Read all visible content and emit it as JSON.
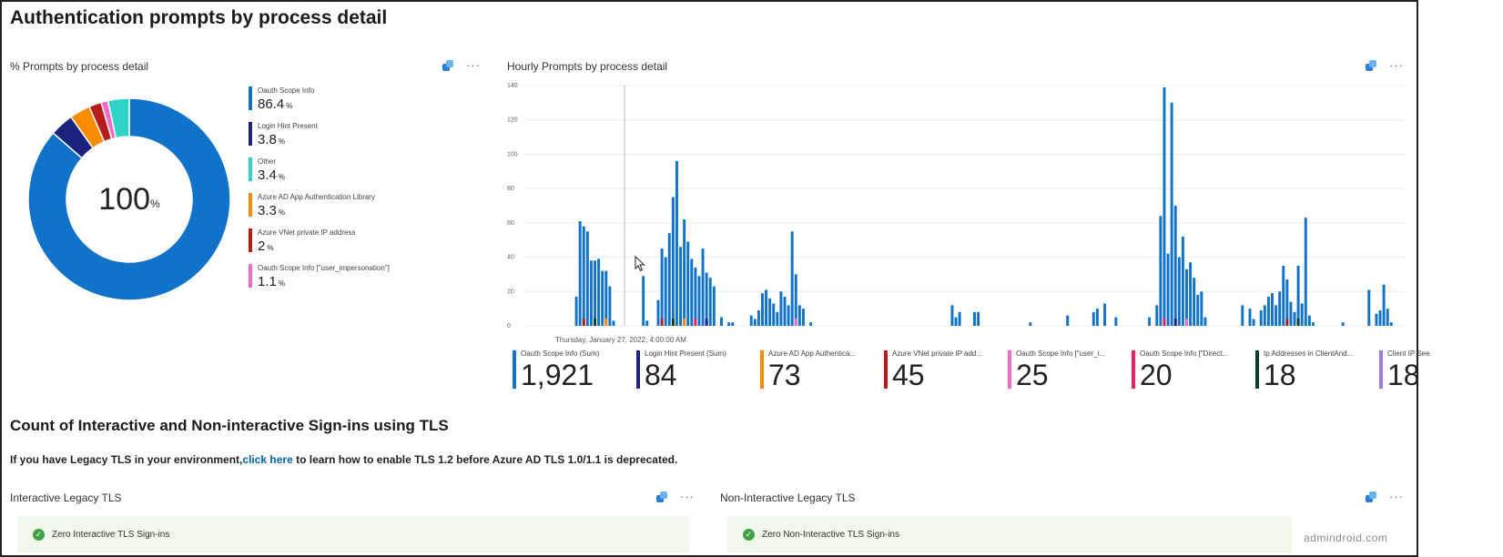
{
  "page": {
    "title": "Authentication prompts by process detail",
    "section2_title": "Count of Interactive and Non-interactive Sign-ins using TLS",
    "note_prefix": "If you have Legacy TLS in your environment,",
    "note_link": "click here",
    "note_suffix": " to learn how to enable TLS 1.2 before Azure AD TLS 1.0/1.1 is deprecated.",
    "watermark": "admindroid.com"
  },
  "icons": {
    "pin": "pin-to-dashboard-icon",
    "more": "more-options-icon",
    "ok": "checkmark-circle-icon",
    "cursor": "mouse-pointer-icon"
  },
  "more_glyph": "···",
  "donut_tile": {
    "title": "% Prompts by process detail",
    "center_value": "100",
    "center_unit": "%",
    "unit": "%",
    "legend": [
      {
        "label": "Oauth Scope Info",
        "value": "86.4",
        "color": "#1172c9"
      },
      {
        "label": "Login Hint Present",
        "value": "3.8",
        "color": "#1a237e"
      },
      {
        "label": "Other",
        "value": "3.4",
        "color": "#2fd3c7"
      },
      {
        "label": "Azure AD App Authentication Library",
        "value": "3.3",
        "color": "#fb8c00"
      },
      {
        "label": "Azure VNet private IP address",
        "value": "2",
        "color": "#b71c1c"
      },
      {
        "label": "Oauth Scope Info [\"user_impersonation\"]",
        "value": "1.1",
        "color": "#f06cc8"
      }
    ]
  },
  "chart_data": {
    "type": "bar",
    "title": "Hourly Prompts by process detail",
    "ylim": [
      0,
      140
    ],
    "yticks": [
      0,
      20,
      40,
      60,
      80,
      100,
      120,
      140
    ],
    "hover_label": "Thursday, January 27, 2022, 4:00:00 AM",
    "series_colors": [
      "#1172c9",
      "#1a237e",
      "#fb8c00",
      "#b71c1c",
      "#f06cc8",
      "#e91e63",
      "#0b3d2e",
      "#9c7de0"
    ],
    "values": [
      0,
      0,
      0,
      0,
      0,
      0,
      0,
      17,
      61,
      58,
      55,
      38,
      38,
      39,
      32,
      32,
      23,
      3,
      0,
      0,
      0,
      0,
      0,
      0,
      0,
      29,
      3,
      0,
      0,
      15,
      45,
      40,
      54,
      75,
      96,
      46,
      62,
      49,
      39,
      34,
      29,
      45,
      31,
      28,
      23,
      0,
      5,
      0,
      2,
      2,
      0,
      0,
      0,
      0,
      6,
      4,
      9,
      19,
      21,
      16,
      13,
      8,
      20,
      17,
      12,
      55,
      30,
      12,
      10,
      0,
      2,
      0,
      0,
      0,
      0,
      0,
      0,
      0,
      0,
      0,
      0,
      0,
      0,
      0,
      0,
      0,
      0,
      0,
      0,
      0,
      0,
      0,
      0,
      0,
      0,
      0,
      0,
      0,
      0,
      0,
      0,
      0,
      0,
      0,
      0,
      0,
      0,
      0,
      12,
      5,
      8,
      0,
      0,
      0,
      8,
      8,
      0,
      0,
      0,
      0,
      0,
      0,
      0,
      0,
      0,
      0,
      0,
      0,
      0,
      2,
      0,
      0,
      0,
      0,
      0,
      0,
      0,
      0,
      0,
      6,
      0,
      0,
      0,
      0,
      0,
      0,
      8,
      10,
      0,
      13,
      0,
      0,
      5,
      0,
      0,
      0,
      0,
      0,
      0,
      0,
      0,
      5,
      0,
      12,
      64,
      139,
      42,
      130,
      70,
      40,
      52,
      33,
      37,
      28,
      18,
      20,
      5,
      0,
      0,
      0,
      0,
      0,
      0,
      0,
      0,
      0,
      12,
      0,
      10,
      4,
      0,
      9,
      12,
      17,
      19,
      12,
      20,
      35,
      27,
      14,
      8,
      35,
      13,
      63,
      6,
      2,
      0,
      0,
      0,
      0,
      0,
      0,
      0,
      2,
      0,
      0,
      0,
      0,
      0,
      0,
      21,
      0,
      7,
      9,
      24,
      10,
      2,
      0
    ]
  },
  "kpis": [
    {
      "label": "Oauth Scope Info (Sum)",
      "value": "1,921",
      "color": "#1172c9"
    },
    {
      "label": "Login Hint Present (Sum)",
      "value": "84",
      "color": "#1a237e"
    },
    {
      "label": "Azure AD App Authentica...",
      "value": "73",
      "color": "#fb8c00"
    },
    {
      "label": "Azure VNet private IP add...",
      "value": "45",
      "color": "#b71c1c"
    },
    {
      "label": "Oauth Scope Info [\"user_i...",
      "value": "25",
      "color": "#f06cc8"
    },
    {
      "label": "Oauth Scope Info [\"Direct...",
      "value": "20",
      "color": "#e91e63"
    },
    {
      "label": "Ip Addresses in ClientAnd...",
      "value": "18",
      "color": "#0b3d2e"
    },
    {
      "label": "Client IP See",
      "value": "18",
      "color": "#9c7de0"
    }
  ],
  "tls": {
    "interactive": {
      "title": "Interactive Legacy TLS",
      "message": "Zero Interactive TLS Sign-ins"
    },
    "non_interactive": {
      "title": "Non-Interactive Legacy TLS",
      "message": "Zero Non-Interactive TLS Sign-ins"
    }
  }
}
